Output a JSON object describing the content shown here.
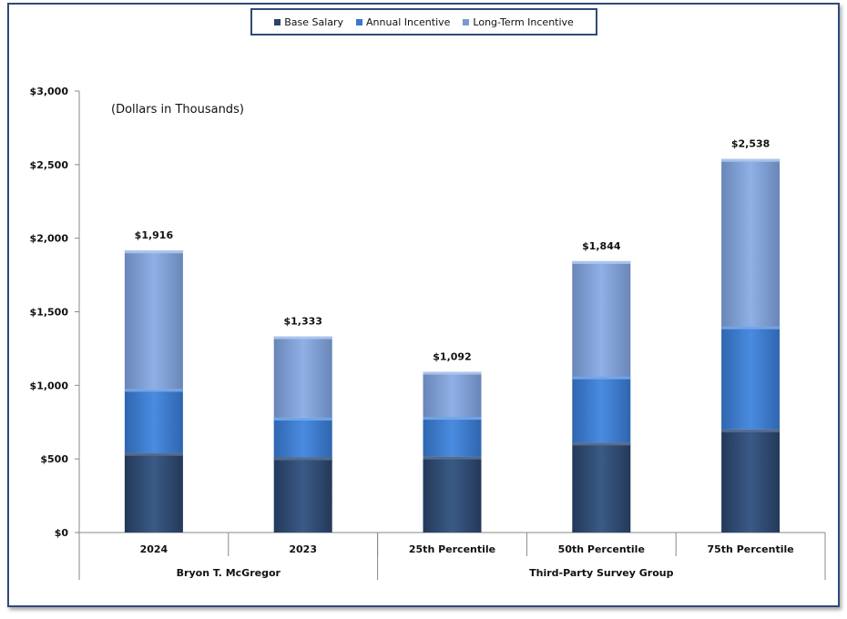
{
  "chart_data": {
    "type": "bar",
    "stacked": true,
    "annotation": "(Dollars in Thousands)",
    "categories": [
      "2024",
      "2023",
      "25th Percentile",
      "50th Percentile",
      "75th Percentile"
    ],
    "groups": [
      {
        "label": "Bryon T. McGregor",
        "categories": [
          "2024",
          "2023"
        ]
      },
      {
        "label": "Third-Party Survey Group",
        "categories": [
          "25th Percentile",
          "50th Percentile",
          "75th Percentile"
        ]
      }
    ],
    "series": [
      {
        "name": "Base Salary",
        "values": [
          540,
          510,
          515,
          610,
          700
        ]
      },
      {
        "name": "Annual Incentive",
        "values": [
          435,
          270,
          270,
          450,
          700
        ]
      },
      {
        "name": "Long-Term Incentive",
        "values": [
          941,
          553,
          307,
          784,
          1138
        ]
      }
    ],
    "totals": [
      "$1,916",
      "$1,333",
      "$1,092",
      "$1,844",
      "$2,538"
    ],
    "y_ticks": [
      "$0",
      "$500",
      "$1,000",
      "$1,500",
      "$2,000",
      "$2,500",
      "$3,000"
    ],
    "ylim": [
      0,
      3000
    ],
    "legend_position": "top-center",
    "grid": false
  },
  "colors": {
    "base_salary": "#2b4468",
    "annual_incentive": "#3a78c8",
    "long_term_incentive": "#7a9bd0",
    "frame": "#2f4a7a"
  }
}
